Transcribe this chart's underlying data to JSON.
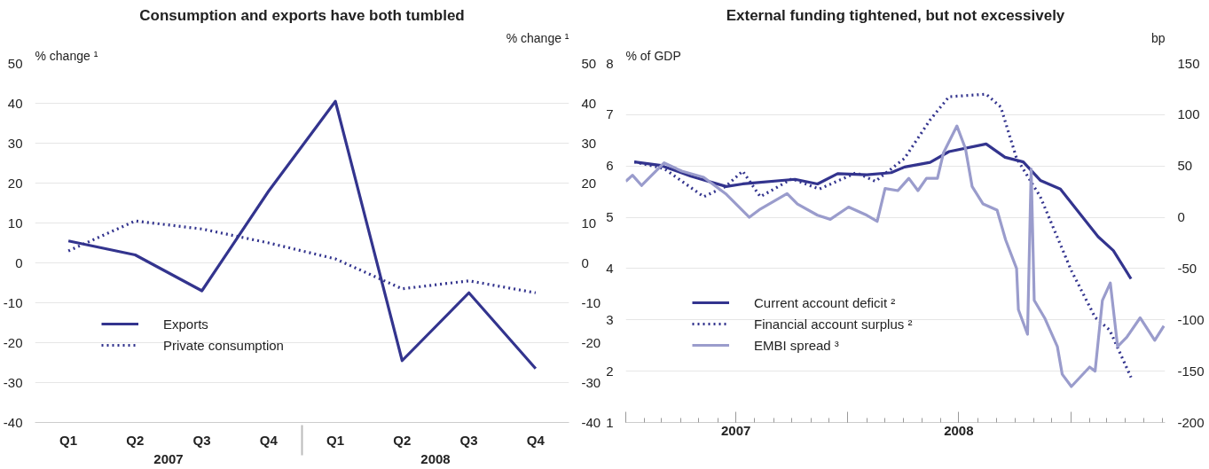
{
  "chart_data": [
    {
      "type": "line",
      "title": "Consumption and exports have both tumbled",
      "ylabel": "% change ¹",
      "y2label": "% change ¹",
      "categories": [
        "Q1",
        "Q2",
        "Q3",
        "Q4",
        "Q1",
        "Q2",
        "Q3",
        "Q4"
      ],
      "annotations": [
        "2007",
        "2008"
      ],
      "ylim": [
        -40,
        50
      ],
      "yticks": [
        -40,
        -30,
        -20,
        -10,
        0,
        10,
        20,
        30,
        40,
        50
      ],
      "y2lim": [
        -40,
        50
      ],
      "y2ticks": [
        -40,
        -30,
        -20,
        -10,
        0,
        10,
        20,
        30,
        40,
        50
      ],
      "grid": "y",
      "legend": "bottom left",
      "series": [
        {
          "name": "Exports",
          "color": "#33348e",
          "line_style": "solid",
          "values": [
            5.5,
            2,
            -7,
            18,
            40.5,
            -24.5,
            -7.5,
            -26.5
          ]
        },
        {
          "name": "Private consumption",
          "color": "#33348e",
          "line_style": "dotted",
          "values": [
            3,
            10.5,
            8.5,
            5,
            1,
            -6.5,
            -4.5,
            -7.5
          ]
        }
      ]
    },
    {
      "type": "line",
      "title": "External funding tightened, but not excessively",
      "ylabel": "% of GDP",
      "y2label": "bp",
      "xlim": [
        "2007-01-01",
        "2009-06-05"
      ],
      "xticks": [
        {
          "value": "2007-01-01",
          "label": null
        },
        {
          "value": "2007-07-01",
          "label": "2007"
        },
        {
          "value": "2008-01-01",
          "label": null
        },
        {
          "value": "2008-07-01",
          "label": "2008"
        },
        {
          "value": "2009-01-01",
          "label": null
        }
      ],
      "ylim": [
        1,
        8
      ],
      "yticks": [
        1,
        2,
        3,
        4,
        5,
        6,
        7,
        8
      ],
      "y2lim": [
        -200,
        150
      ],
      "y2ticks": [
        -200,
        -150,
        -100,
        -50,
        0,
        50,
        100,
        150
      ],
      "grid": "y",
      "legend": "bottom left",
      "series": [
        {
          "name": "Current account deficit ²",
          "color": "#33348e",
          "line_style": "solid",
          "axis": "y",
          "x": [
            "2007-01-15",
            "2007-02-28",
            "2007-04-18",
            "2007-06-15",
            "2007-07-12",
            "2007-10-06",
            "2007-11-12",
            "2007-12-15",
            "2008-02-01",
            "2008-03-12",
            "2008-04-03",
            "2008-05-15",
            "2008-06-15",
            "2008-08-15",
            "2008-09-15",
            "2008-10-15",
            "2008-11-12",
            "2008-12-15",
            "2009-02-15",
            "2009-03-12",
            "2009-04-10"
          ],
          "values": [
            6.08,
            6.01,
            5.8,
            5.6,
            5.65,
            5.74,
            5.65,
            5.85,
            5.83,
            5.87,
            5.98,
            6.07,
            6.28,
            6.43,
            6.17,
            6.08,
            5.72,
            5.55,
            4.62,
            4.35,
            3.8
          ]
        },
        {
          "name": "Financial account surplus ²",
          "color": "#33348e",
          "line_style": "dotted",
          "axis": "y",
          "x": [
            "2007-01-15",
            "2007-03-05",
            "2007-05-09",
            "2007-06-14",
            "2007-07-12",
            "2007-08-10",
            "2007-10-01",
            "2007-11-15",
            "2008-01-15",
            "2008-02-15",
            "2008-04-03",
            "2008-05-15",
            "2008-06-15",
            "2008-08-15",
            "2008-09-08",
            "2008-10-04",
            "2008-11-12",
            "2009-01-02",
            "2009-02-10",
            "2009-03-06",
            "2009-04-10"
          ],
          "values": [
            6.08,
            5.95,
            5.4,
            5.6,
            5.9,
            5.4,
            5.75,
            5.55,
            5.87,
            5.7,
            6.15,
            6.9,
            7.35,
            7.4,
            7.15,
            6.15,
            5.4,
            3.96,
            3.05,
            2.8,
            1.88
          ]
        },
        {
          "name": "EMBI spread ³",
          "color": "#9a9ccc",
          "line_style": "solid",
          "axis": "y2",
          "x": [
            "2007-01-01",
            "2007-01-12",
            "2007-01-27",
            "2007-03-05",
            "2007-04-03",
            "2007-05-09",
            "2007-06-14",
            "2007-07-23",
            "2007-08-10",
            "2007-09-23",
            "2007-10-10",
            "2007-11-12",
            "2007-12-03",
            "2008-01-02",
            "2008-02-01",
            "2008-02-18",
            "2008-03-02",
            "2008-03-23",
            "2008-04-10",
            "2008-04-25",
            "2008-05-09",
            "2008-05-27",
            "2008-06-06",
            "2008-06-28",
            "2008-07-12",
            "2008-07-23",
            "2008-08-10",
            "2008-09-02",
            "2008-09-16",
            "2008-10-04",
            "2008-10-07",
            "2008-10-22",
            "2008-10-28",
            "2008-11-02",
            "2008-11-19",
            "2008-12-10",
            "2008-12-18",
            "2009-01-02",
            "2009-02-01",
            "2009-02-10",
            "2009-02-22",
            "2009-03-07",
            "2009-03-19",
            "2009-04-03",
            "2009-04-25",
            "2009-05-19",
            "2009-06-03"
          ],
          "values": [
            35,
            41,
            31,
            53,
            45,
            39,
            23,
            0,
            8,
            23,
            13,
            2,
            -2,
            10,
            2,
            -4,
            28,
            26,
            38,
            26,
            38,
            38,
            63,
            89,
            67,
            30,
            13,
            7,
            -22,
            -50,
            -90,
            -114,
            47,
            -81,
            -98,
            -126,
            -153,
            -165,
            -146,
            -150,
            -81,
            -64,
            -126,
            -117,
            -98,
            -120,
            -106
          ]
        }
      ]
    }
  ]
}
